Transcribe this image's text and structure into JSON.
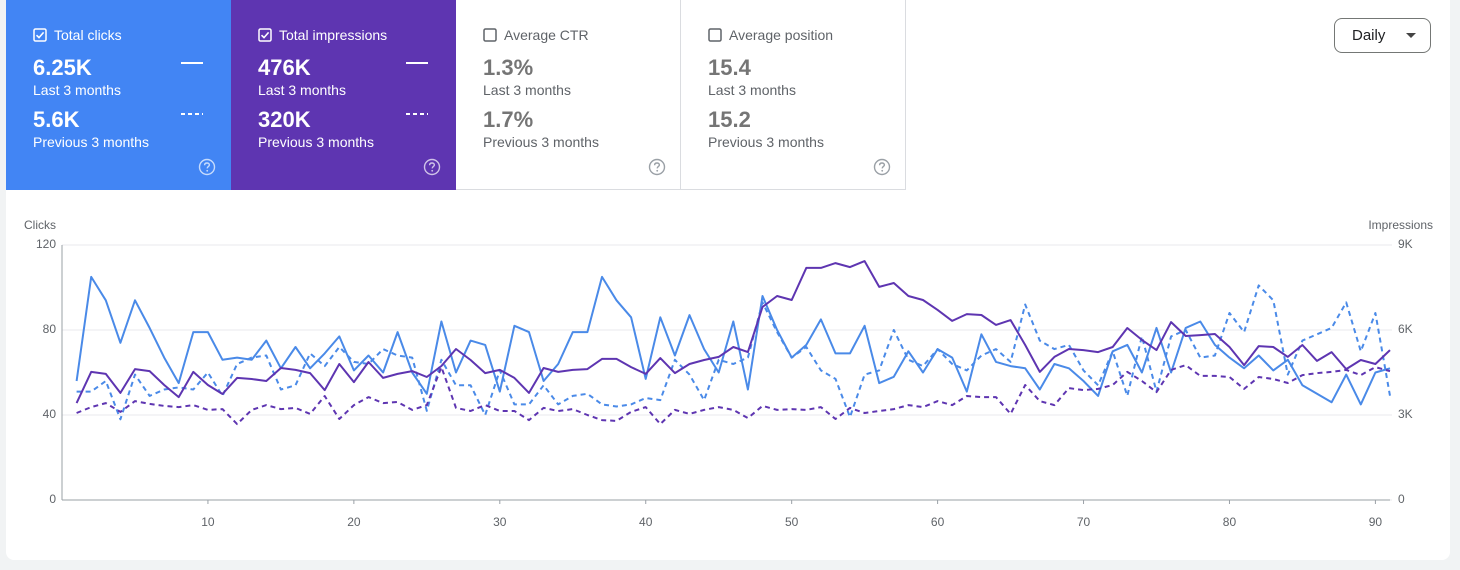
{
  "metrics": [
    {
      "label": "Total clicks",
      "value": "6.25K",
      "period": "Last 3 months",
      "prev_value": "5.6K",
      "prev_period": "Previous 3 months",
      "checked": true,
      "color": "#4285f4"
    },
    {
      "label": "Total impressions",
      "value": "476K",
      "period": "Last 3 months",
      "prev_value": "320K",
      "prev_period": "Previous 3 months",
      "checked": true,
      "color": "#5e35b1"
    },
    {
      "label": "Average CTR",
      "value": "1.3%",
      "period": "Last 3 months",
      "prev_value": "1.7%",
      "prev_period": "Previous 3 months",
      "checked": false,
      "color": "#00897b"
    },
    {
      "label": "Average position",
      "value": "15.4",
      "period": "Last 3 months",
      "prev_value": "15.2",
      "prev_period": "Previous 3 months",
      "checked": false,
      "color": "#e8710a"
    }
  ],
  "period_selector": "Daily",
  "chart_data": {
    "type": "line",
    "ylabel": "Clicks",
    "y2label": "Impressions",
    "x": [
      1,
      2,
      3,
      4,
      5,
      6,
      7,
      8,
      9,
      10,
      11,
      12,
      13,
      14,
      15,
      16,
      17,
      18,
      19,
      20,
      21,
      22,
      23,
      24,
      25,
      26,
      27,
      28,
      29,
      30,
      31,
      32,
      33,
      34,
      35,
      36,
      37,
      38,
      39,
      40,
      41,
      42,
      43,
      44,
      45,
      46,
      47,
      48,
      49,
      50,
      51,
      52,
      53,
      54,
      55,
      56,
      57,
      58,
      59,
      60,
      61,
      62,
      63,
      64,
      65,
      66,
      67,
      68,
      69,
      70,
      71,
      72,
      73,
      74,
      75,
      76,
      77,
      78,
      79,
      80,
      81,
      82,
      83,
      84,
      85,
      86,
      87,
      88,
      89,
      90,
      91
    ],
    "xlim": [
      0,
      91
    ],
    "xticks": [
      10,
      20,
      30,
      40,
      50,
      60,
      70,
      80,
      90
    ],
    "ylim": [
      0,
      120
    ],
    "yticks": [
      0,
      40,
      80,
      120
    ],
    "y2lim": [
      0,
      9000
    ],
    "y2ticks": [
      0,
      {
        "value": 3000,
        "label": "3K"
      },
      {
        "value": 6000,
        "label": "6K"
      },
      {
        "value": 9000,
        "label": "9K"
      }
    ],
    "grid": true,
    "series": [
      {
        "color": "#4a8ae8",
        "dashed": false,
        "axis": "y",
        "values": [
          56,
          105,
          94,
          74,
          94,
          81,
          67,
          55,
          79,
          79,
          66,
          67,
          66,
          75,
          62,
          72,
          62,
          69,
          77,
          61,
          68,
          60,
          79,
          60,
          50,
          84,
          60,
          75,
          73,
          51,
          82,
          79,
          56,
          64,
          79,
          79,
          105,
          94,
          86,
          57,
          86,
          68,
          87,
          71,
          60,
          84,
          52,
          96,
          80,
          67,
          73,
          85,
          69,
          69,
          82,
          55,
          58,
          70,
          60,
          71,
          67,
          51,
          78,
          65,
          63,
          62,
          52,
          64,
          62,
          56,
          49,
          70,
          73,
          60,
          81,
          60,
          81,
          84,
          73,
          67,
          62,
          68,
          61,
          66,
          54,
          50,
          46,
          59,
          45,
          60,
          62
        ]
      },
      {
        "color": "#4a8ae8",
        "dashed": true,
        "axis": "y",
        "values": [
          51,
          51,
          56,
          38,
          59,
          49,
          52,
          53,
          52,
          60,
          49,
          64,
          67,
          68,
          52,
          54,
          69,
          63,
          72,
          65,
          64,
          71,
          68,
          67,
          42,
          66,
          54,
          54,
          40,
          61,
          45,
          45,
          54,
          45,
          49,
          50,
          45,
          44,
          45,
          48,
          47,
          66,
          59,
          47,
          66,
          64,
          67,
          93,
          79,
          67,
          72,
          61,
          57,
          39,
          59,
          61,
          80,
          66,
          63,
          71,
          64,
          61,
          68,
          71,
          65,
          92,
          75,
          71,
          73,
          61,
          54,
          70,
          49,
          77,
          51,
          77,
          80,
          67,
          68,
          88,
          79,
          101,
          94,
          59,
          75,
          78,
          81,
          93,
          70,
          88,
          49
        ]
      },
      {
        "color": "#5e35b1",
        "dashed": false,
        "axis": "y2",
        "values": [
          3420,
          4520,
          4450,
          3780,
          4620,
          4550,
          4060,
          3630,
          4520,
          4060,
          3740,
          4310,
          4270,
          4200,
          4660,
          4590,
          4480,
          3880,
          4800,
          4160,
          4870,
          4310,
          4450,
          4550,
          4340,
          4730,
          5330,
          4940,
          4480,
          4590,
          4310,
          3780,
          4660,
          4520,
          4590,
          4620,
          4980,
          4980,
          4690,
          4450,
          5010,
          4480,
          4800,
          4940,
          5050,
          5400,
          5220,
          6810,
          7200,
          7060,
          8190,
          8190,
          8360,
          8220,
          8430,
          7520,
          7660,
          7200,
          7060,
          6710,
          6320,
          6560,
          6530,
          6180,
          6350,
          5470,
          4520,
          5050,
          5330,
          5290,
          5220,
          5400,
          6070,
          5650,
          5290,
          6280,
          5790,
          5820,
          5860,
          5400,
          4760,
          5430,
          5400,
          5050,
          5470,
          4910,
          5220,
          4620,
          4940,
          4800,
          5290
        ]
      },
      {
        "color": "#5e35b1",
        "dashed": true,
        "axis": "y2",
        "values": [
          3070,
          3280,
          3420,
          3110,
          3490,
          3390,
          3320,
          3280,
          3350,
          3180,
          3210,
          2680,
          3180,
          3350,
          3210,
          3250,
          3040,
          3670,
          2860,
          3350,
          3630,
          3420,
          3460,
          3180,
          3350,
          4690,
          3250,
          3140,
          3350,
          3140,
          3140,
          2820,
          3250,
          3140,
          3210,
          3000,
          2820,
          2790,
          3110,
          3280,
          2680,
          3180,
          3040,
          3180,
          3280,
          3180,
          2890,
          3320,
          3180,
          3210,
          3180,
          3280,
          2860,
          3250,
          3070,
          3140,
          3210,
          3350,
          3280,
          3490,
          3350,
          3670,
          3630,
          3630,
          3040,
          4060,
          3490,
          3350,
          3950,
          3880,
          3920,
          4060,
          4520,
          4200,
          3810,
          4590,
          4760,
          4380,
          4380,
          4340,
          3920,
          4340,
          4270,
          4130,
          4410,
          4480,
          4520,
          4590,
          4410,
          4690,
          4550
        ]
      }
    ]
  }
}
